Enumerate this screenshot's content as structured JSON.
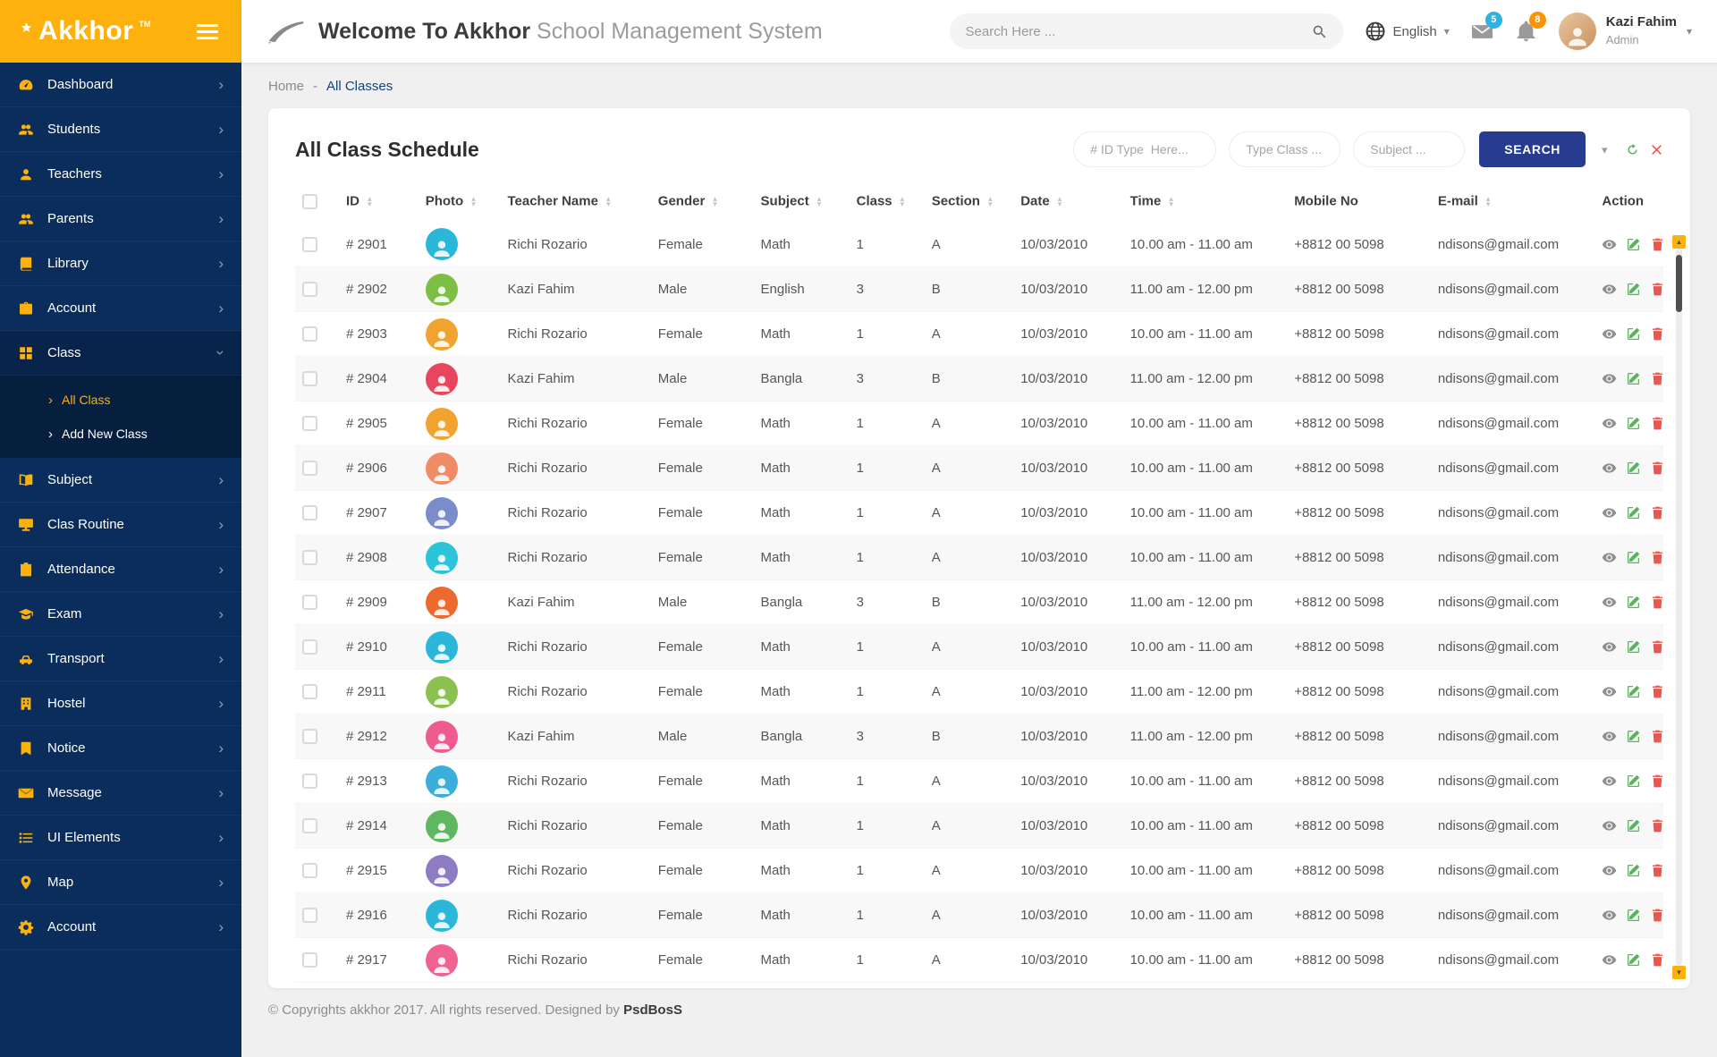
{
  "app": {
    "logo_text": "Akkhor",
    "logo_tm": "TM",
    "welcome_bold": "Welcome To Akkhor",
    "welcome_light": "School Management System"
  },
  "topbar": {
    "search_placeholder": "Search Here ...",
    "language": "English",
    "mail_badge": "5",
    "bell_badge": "8",
    "user_name": "Kazi Fahim",
    "user_role": "Admin"
  },
  "breadcrumb": {
    "home": "Home",
    "separator": "-",
    "current": "All Classes"
  },
  "page": {
    "card_title": "All Class Schedule",
    "filters": {
      "id_placeholder": "# ID Type  Here...",
      "class_placeholder": "Type Class ...",
      "subject_placeholder": "Subject ...",
      "search_button": "SEARCH"
    }
  },
  "sidebar": {
    "items": [
      {
        "label": "Dashboard",
        "icon": "dashboard-icon"
      },
      {
        "label": "Students",
        "icon": "students-icon"
      },
      {
        "label": "Teachers",
        "icon": "teachers-icon"
      },
      {
        "label": "Parents",
        "icon": "parents-icon"
      },
      {
        "label": "Library",
        "icon": "library-icon"
      },
      {
        "label": "Account",
        "icon": "briefcase-icon"
      },
      {
        "label": "Class",
        "icon": "class-grid-icon",
        "expanded": true,
        "children": [
          {
            "label": "All Class",
            "active": true
          },
          {
            "label": "Add New Class",
            "active": false
          }
        ]
      },
      {
        "label": "Subject",
        "icon": "subject-icon"
      },
      {
        "label": "Clas Routine",
        "icon": "routine-icon"
      },
      {
        "label": "Attendance",
        "icon": "attendance-icon"
      },
      {
        "label": "Exam",
        "icon": "exam-icon"
      },
      {
        "label": "Transport",
        "icon": "transport-icon"
      },
      {
        "label": "Hostel",
        "icon": "hostel-icon"
      },
      {
        "label": "Notice",
        "icon": "notice-icon"
      },
      {
        "label": "Message",
        "icon": "message-icon"
      },
      {
        "label": "UI Elements",
        "icon": "ui-elements-icon"
      },
      {
        "label": "Map",
        "icon": "map-pin-icon"
      },
      {
        "label": "Account",
        "icon": "gear-icon"
      }
    ]
  },
  "table": {
    "columns": [
      {
        "label": "ID",
        "sortable": true
      },
      {
        "label": "Photo",
        "sortable": true
      },
      {
        "label": "Teacher Name",
        "sortable": true
      },
      {
        "label": "Gender",
        "sortable": true
      },
      {
        "label": "Subject",
        "sortable": true
      },
      {
        "label": "Class",
        "sortable": true
      },
      {
        "label": "Section",
        "sortable": true
      },
      {
        "label": "Date",
        "sortable": true
      },
      {
        "label": "Time",
        "sortable": true
      },
      {
        "label": "Mobile No",
        "sortable": false
      },
      {
        "label": "E-mail",
        "sortable": true
      },
      {
        "label": "Action",
        "sortable": false
      }
    ],
    "rows": [
      {
        "id": "# 2901",
        "photo_color": "#2bb7d9",
        "name": "Richi Rozario",
        "gender": "Female",
        "subject": "Math",
        "class": "1",
        "section": "A",
        "date": "10/03/2010",
        "time": "10.00 am - 11.00 am",
        "mobile": "+8812 00 5098",
        "email": "ndisons@gmail.com"
      },
      {
        "id": "# 2902",
        "photo_color": "#7dbf44",
        "name": "Kazi Fahim",
        "gender": "Male",
        "subject": "English",
        "class": "3",
        "section": "B",
        "date": "10/03/2010",
        "time": "11.00 am - 12.00 pm",
        "mobile": "+8812 00 5098",
        "email": "ndisons@gmail.com"
      },
      {
        "id": "# 2903",
        "photo_color": "#f0a32f",
        "name": "Richi Rozario",
        "gender": "Female",
        "subject": "Math",
        "class": "1",
        "section": "A",
        "date": "10/03/2010",
        "time": "10.00 am - 11.00 am",
        "mobile": "+8812 00 5098",
        "email": "ndisons@gmail.com"
      },
      {
        "id": "# 2904",
        "photo_color": "#e8465f",
        "name": "Kazi Fahim",
        "gender": "Male",
        "subject": "Bangla",
        "class": "3",
        "section": "B",
        "date": "10/03/2010",
        "time": "11.00 am - 12.00 pm",
        "mobile": "+8812 00 5098",
        "email": "ndisons@gmail.com"
      },
      {
        "id": "# 2905",
        "photo_color": "#f0a32f",
        "name": "Richi Rozario",
        "gender": "Female",
        "subject": "Math",
        "class": "1",
        "section": "A",
        "date": "10/03/2010",
        "time": "10.00 am - 11.00 am",
        "mobile": "+8812 00 5098",
        "email": "ndisons@gmail.com"
      },
      {
        "id": "# 2906",
        "photo_color": "#ef8b67",
        "name": "Richi Rozario",
        "gender": "Female",
        "subject": "Math",
        "class": "1",
        "section": "A",
        "date": "10/03/2010",
        "time": "10.00 am - 11.00 am",
        "mobile": "+8812 00 5098",
        "email": "ndisons@gmail.com"
      },
      {
        "id": "# 2907",
        "photo_color": "#7b8ccb",
        "name": "Richi Rozario",
        "gender": "Female",
        "subject": "Math",
        "class": "1",
        "section": "A",
        "date": "10/03/2010",
        "time": "10.00 am - 11.00 am",
        "mobile": "+8812 00 5098",
        "email": "ndisons@gmail.com"
      },
      {
        "id": "# 2908",
        "photo_color": "#2bc4d9",
        "name": "Richi Rozario",
        "gender": "Female",
        "subject": "Math",
        "class": "1",
        "section": "A",
        "date": "10/03/2010",
        "time": "10.00 am - 11.00 am",
        "mobile": "+8812 00 5098",
        "email": "ndisons@gmail.com"
      },
      {
        "id": "# 2909",
        "photo_color": "#ed6a2f",
        "name": "Kazi Fahim",
        "gender": "Male",
        "subject": "Bangla",
        "class": "3",
        "section": "B",
        "date": "10/03/2010",
        "time": "11.00 am - 12.00 pm",
        "mobile": "+8812 00 5098",
        "email": "ndisons@gmail.com"
      },
      {
        "id": "# 2910",
        "photo_color": "#2bb7d9",
        "name": "Richi Rozario",
        "gender": "Female",
        "subject": "Math",
        "class": "1",
        "section": "A",
        "date": "10/03/2010",
        "time": "10.00 am - 11.00 am",
        "mobile": "+8812 00 5098",
        "email": "ndisons@gmail.com"
      },
      {
        "id": "# 2911",
        "photo_color": "#8cc152",
        "name": "Richi Rozario",
        "gender": "Female",
        "subject": "Math",
        "class": "1",
        "section": "A",
        "date": "10/03/2010",
        "time": "11.00 am - 12.00 pm",
        "mobile": "+8812 00 5098",
        "email": "ndisons@gmail.com"
      },
      {
        "id": "# 2912",
        "photo_color": "#ef5b8f",
        "name": "Kazi Fahim",
        "gender": "Male",
        "subject": "Bangla",
        "class": "3",
        "section": "B",
        "date": "10/03/2010",
        "time": "11.00 am - 12.00 pm",
        "mobile": "+8812 00 5098",
        "email": "ndisons@gmail.com"
      },
      {
        "id": "# 2913",
        "photo_color": "#3bafda",
        "name": "Richi Rozario",
        "gender": "Female",
        "subject": "Math",
        "class": "1",
        "section": "A",
        "date": "10/03/2010",
        "time": "10.00 am - 11.00 am",
        "mobile": "+8812 00 5098",
        "email": "ndisons@gmail.com"
      },
      {
        "id": "# 2914",
        "photo_color": "#5fb760",
        "name": "Richi Rozario",
        "gender": "Female",
        "subject": "Math",
        "class": "1",
        "section": "A",
        "date": "10/03/2010",
        "time": "10.00 am - 11.00 am",
        "mobile": "+8812 00 5098",
        "email": "ndisons@gmail.com"
      },
      {
        "id": "# 2915",
        "photo_color": "#8e7cc3",
        "name": "Richi Rozario",
        "gender": "Female",
        "subject": "Math",
        "class": "1",
        "section": "A",
        "date": "10/03/2010",
        "time": "10.00 am - 11.00 am",
        "mobile": "+8812 00 5098",
        "email": "ndisons@gmail.com"
      },
      {
        "id": "# 2916",
        "photo_color": "#2bb7d9",
        "name": "Richi Rozario",
        "gender": "Female",
        "subject": "Math",
        "class": "1",
        "section": "A",
        "date": "10/03/2010",
        "time": "10.00 am - 11.00 am",
        "mobile": "+8812 00 5098",
        "email": "ndisons@gmail.com"
      },
      {
        "id": "# 2917",
        "photo_color": "#ef6292",
        "name": "Richi Rozario",
        "gender": "Female",
        "subject": "Math",
        "class": "1",
        "section": "A",
        "date": "10/03/2010",
        "time": "10.00 am - 11.00 am",
        "mobile": "+8812 00 5098",
        "email": "ndisons@gmail.com"
      }
    ]
  },
  "footer": {
    "text": "© Copyrights akkhor 2017. All rights reserved. Designed by ",
    "brand": "PsdBosS"
  },
  "colors": {
    "accent": "#fcb10c",
    "sidebar": "#0b2d5b",
    "search_button": "#283c8f",
    "badge_mail": "#2bb3e6",
    "badge_bell": "#f89406",
    "edit_green": "#58b35c",
    "delete_red": "#e8574d"
  }
}
